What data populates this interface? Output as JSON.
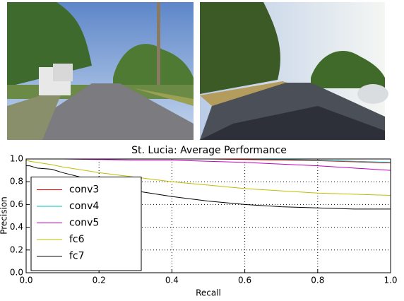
{
  "chart_data": {
    "type": "line",
    "title": "St. Lucia: Average Performance",
    "x_label": "Recall",
    "y_label": "Precision",
    "x": [
      0,
      0.01,
      0.03,
      0.07,
      0.1,
      0.2,
      0.3,
      0.4,
      0.5,
      0.6,
      0.7,
      0.8,
      0.9,
      1.0
    ],
    "series": [
      {
        "name": "conv3",
        "color": "#ff0000",
        "values": [
          1,
          1,
          1,
          1,
          1,
          1,
          1,
          1,
          1,
          0.995,
          0.99,
          0.985,
          0.975,
          0.965
        ]
      },
      {
        "name": "conv4",
        "color": "#00bfbf",
        "values": [
          1,
          1,
          1,
          1,
          1,
          1,
          1,
          1,
          1,
          1,
          0.995,
          0.99,
          0.98,
          0.97
        ]
      },
      {
        "name": "conv5",
        "color": "#bf00bf",
        "values": [
          1,
          1,
          1,
          1,
          1,
          0.995,
          0.99,
          0.99,
          0.98,
          0.97,
          0.955,
          0.94,
          0.92,
          0.9
        ]
      },
      {
        "name": "fc6",
        "color": "#bfbf00",
        "values": [
          0.99,
          0.98,
          0.97,
          0.95,
          0.93,
          0.88,
          0.84,
          0.8,
          0.77,
          0.74,
          0.72,
          0.7,
          0.69,
          0.68
        ]
      },
      {
        "name": "fc7",
        "color": "#000000",
        "values": [
          0.94,
          0.94,
          0.92,
          0.91,
          0.88,
          0.8,
          0.72,
          0.67,
          0.63,
          0.6,
          0.58,
          0.57,
          0.56,
          0.56
        ]
      }
    ],
    "xlim": [
      0,
      1
    ],
    "ylim": [
      0,
      1
    ],
    "xticks": [
      {
        "value": 0,
        "label": "0.0"
      },
      0.2,
      0.4,
      0.6,
      0.8,
      {
        "value": 1,
        "label": "1.0"
      }
    ],
    "yticks": [
      {
        "value": 0,
        "label": "0.0"
      },
      0.2,
      0.4,
      0.6,
      0.8,
      {
        "value": 1,
        "label": "1.0"
      }
    ],
    "grid": true,
    "legend": "lower left"
  }
}
